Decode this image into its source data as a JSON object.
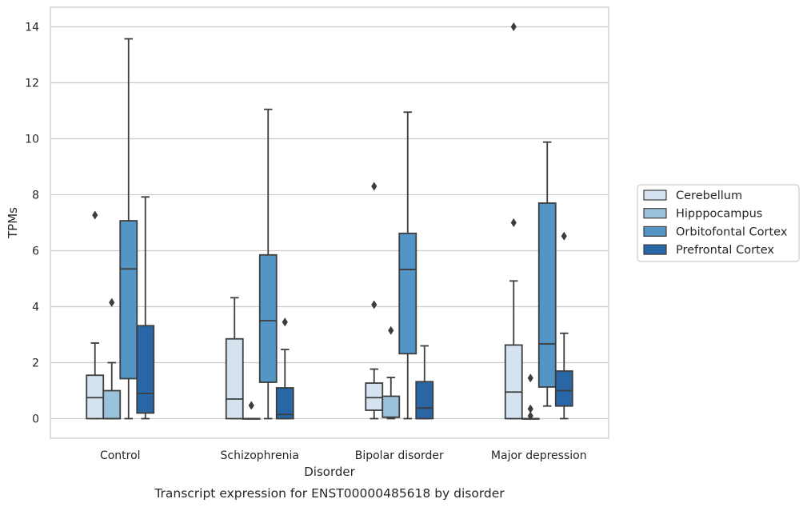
{
  "chart_data": {
    "type": "box",
    "caption": "Transcript expression for ENST00000485618 by disorder",
    "xlabel": "Disorder",
    "ylabel": "TPMs",
    "ylim": [
      -0.7,
      14.7
    ],
    "yticks": [
      0,
      2,
      4,
      6,
      8,
      10,
      12,
      14
    ],
    "grid": "horizontal",
    "legend_position": "right",
    "categories": [
      "Control",
      "Schizophrenia",
      "Bipolar disorder",
      "Major depression"
    ],
    "series": [
      {
        "name": "Cerebellum",
        "color": "#d5e3f0",
        "boxes": [
          {
            "whislo": 0.0,
            "q1": 0.0,
            "med": 0.75,
            "q3": 1.55,
            "whishi": 2.7,
            "fliers": [
              7.27
            ]
          },
          {
            "whislo": 0.0,
            "q1": 0.0,
            "med": 0.7,
            "q3": 2.85,
            "whishi": 4.32,
            "fliers": []
          },
          {
            "whislo": 0.0,
            "q1": 0.3,
            "med": 0.75,
            "q3": 1.27,
            "whishi": 1.77,
            "fliers": [
              4.07,
              8.3
            ]
          },
          {
            "whislo": 0.0,
            "q1": 0.0,
            "med": 0.95,
            "q3": 2.63,
            "whishi": 4.92,
            "fliers": [
              7.0,
              14.0
            ]
          }
        ]
      },
      {
        "name": "Hipppocampus",
        "color": "#9ac2dd",
        "boxes": [
          {
            "whislo": 0.0,
            "q1": 0.0,
            "med": 0.0,
            "q3": 1.0,
            "whishi": 2.0,
            "fliers": [
              4.15
            ]
          },
          {
            "whislo": 0.0,
            "q1": 0.0,
            "med": 0.0,
            "q3": 0.0,
            "whishi": 0.0,
            "fliers": [
              0.47
            ]
          },
          {
            "whislo": 0.0,
            "q1": 0.05,
            "med": 0.05,
            "q3": 0.8,
            "whishi": 1.47,
            "fliers": [
              3.15
            ]
          },
          {
            "whislo": 0.0,
            "q1": 0.0,
            "med": 0.0,
            "q3": 0.0,
            "whishi": 0.0,
            "fliers": [
              0.1,
              0.35,
              1.45
            ]
          }
        ]
      },
      {
        "name": "Orbitofontal Cortex",
        "color": "#5396c5",
        "boxes": [
          {
            "whislo": 0.0,
            "q1": 1.43,
            "med": 5.35,
            "q3": 7.07,
            "whishi": 13.57,
            "fliers": []
          },
          {
            "whislo": 0.0,
            "q1": 1.3,
            "med": 3.5,
            "q3": 5.85,
            "whishi": 11.05,
            "fliers": []
          },
          {
            "whislo": 0.0,
            "q1": 2.32,
            "med": 5.33,
            "q3": 6.62,
            "whishi": 10.95,
            "fliers": []
          },
          {
            "whislo": 0.45,
            "q1": 1.13,
            "med": 2.67,
            "q3": 7.7,
            "whishi": 9.88,
            "fliers": []
          }
        ]
      },
      {
        "name": "Prefrontal Cortex",
        "color": "#2866a6",
        "boxes": [
          {
            "whislo": 0.0,
            "q1": 0.2,
            "med": 0.9,
            "q3": 3.32,
            "whishi": 7.92,
            "fliers": []
          },
          {
            "whislo": 0.0,
            "q1": 0.0,
            "med": 0.15,
            "q3": 1.1,
            "whishi": 2.47,
            "fliers": [
              3.45
            ]
          },
          {
            "whislo": 0.0,
            "q1": 0.0,
            "med": 0.38,
            "q3": 1.32,
            "whishi": 2.6,
            "fliers": []
          },
          {
            "whislo": 0.0,
            "q1": 0.45,
            "med": 1.0,
            "q3": 1.7,
            "whishi": 3.05,
            "fliers": [
              6.52
            ]
          }
        ]
      }
    ]
  }
}
